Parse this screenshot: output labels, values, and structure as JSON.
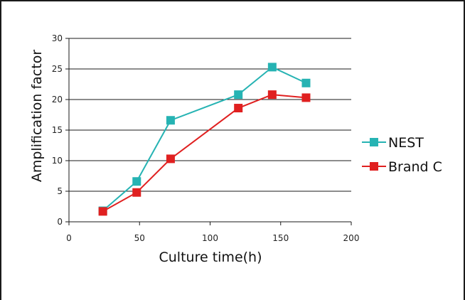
{
  "chart_data": {
    "type": "line",
    "title": "",
    "xlabel": "Culture time(h)",
    "ylabel": "Amplification factor",
    "xlim": [
      0,
      200
    ],
    "ylim": [
      0,
      30
    ],
    "xticks": [
      "0",
      "50",
      "100",
      "150",
      "200"
    ],
    "yticks": [
      "0",
      "5",
      "10",
      "15",
      "20",
      "25",
      "30"
    ],
    "grid": "horizontal",
    "legend_position": "right",
    "series": [
      {
        "name": "NEST",
        "color": "#26b3b3",
        "marker": "square",
        "x": [
          24,
          48,
          72,
          120,
          144,
          168
        ],
        "y": [
          1.8,
          6.6,
          16.6,
          20.8,
          25.3,
          22.7
        ]
      },
      {
        "name": "Brand C",
        "color": "#e02020",
        "marker": "square",
        "x": [
          24,
          48,
          72,
          120,
          144,
          168
        ],
        "y": [
          1.7,
          4.8,
          10.3,
          18.6,
          20.8,
          20.3
        ]
      }
    ]
  }
}
